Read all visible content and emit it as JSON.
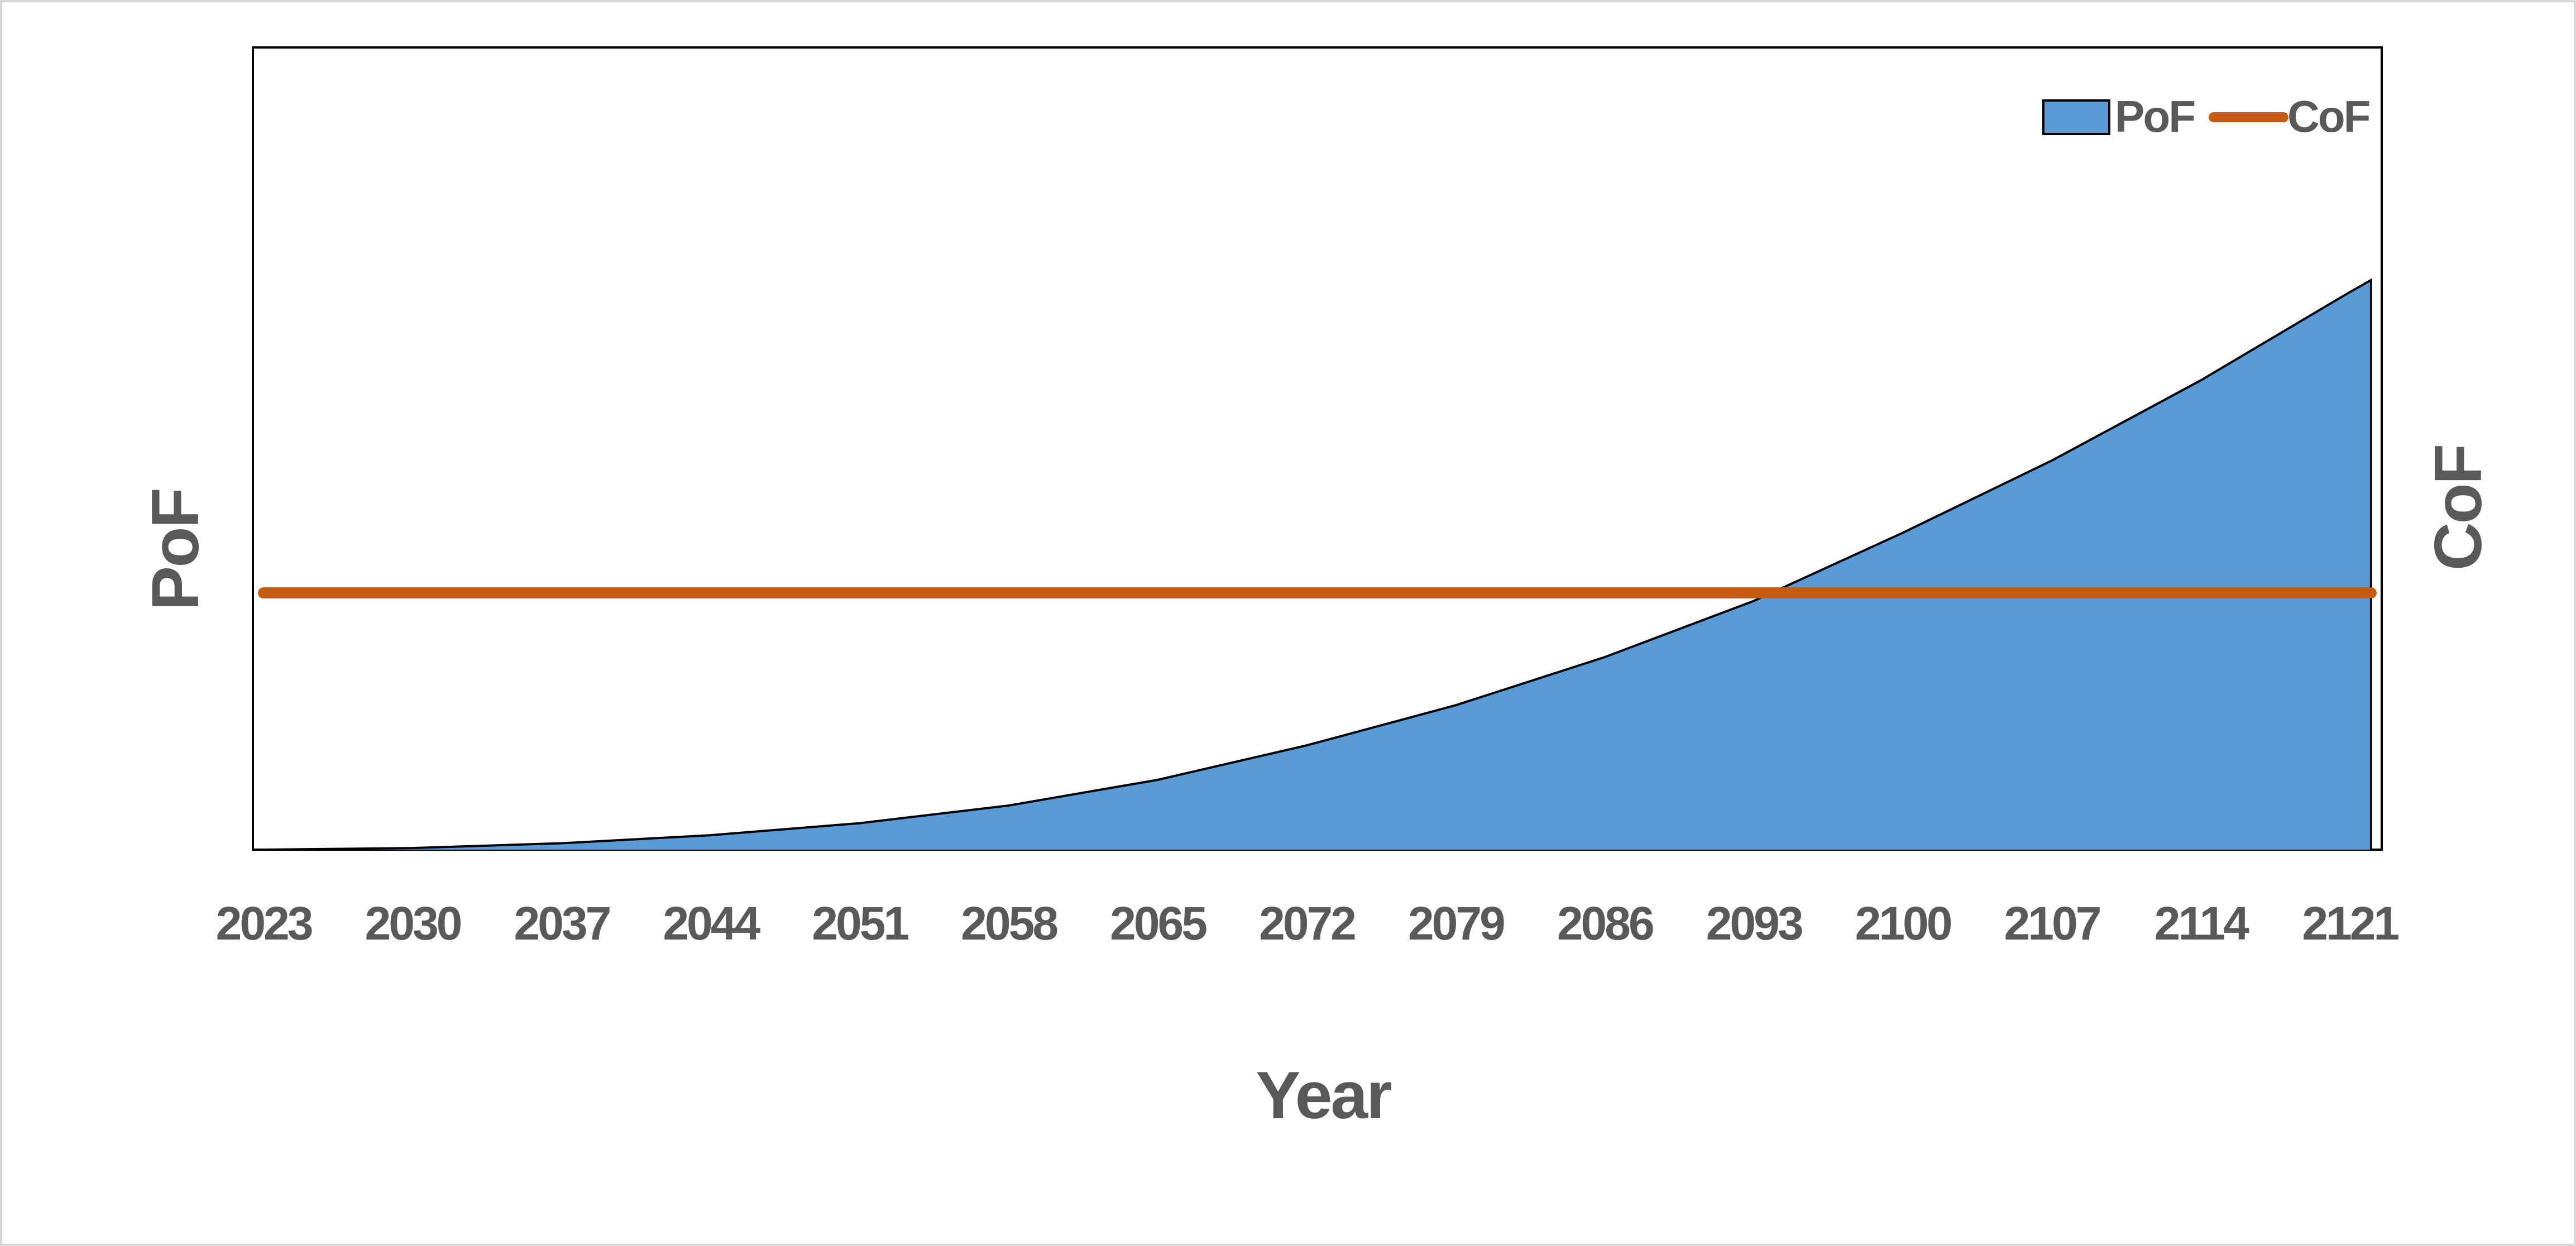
{
  "chart_data": {
    "type": "area",
    "xlabel": "Year",
    "ylabel_left": "PoF",
    "ylabel_right": "CoF",
    "x_tick_labels": [
      "2023",
      "2030",
      "2037",
      "2044",
      "2051",
      "2058",
      "2065",
      "2072",
      "2079",
      "2086",
      "2093",
      "2100",
      "2107",
      "2114",
      "2121"
    ],
    "xlim": [
      2023,
      2122
    ],
    "ylim": [
      0,
      1
    ],
    "grid": false,
    "legend": {
      "placement": "top-right",
      "entries": [
        {
          "name": "PoF",
          "type": "area"
        },
        {
          "name": "CoF",
          "type": "line"
        }
      ]
    },
    "series": [
      {
        "name": "PoF",
        "type": "area",
        "color": "#5B9BD5",
        "x": [
          2023,
          2030,
          2037,
          2044,
          2051,
          2058,
          2065,
          2072,
          2079,
          2086,
          2093,
          2100,
          2107,
          2114,
          2121,
          2122
        ],
        "y": [
          0.0,
          0.002,
          0.008,
          0.018,
          0.033,
          0.055,
          0.087,
          0.13,
          0.18,
          0.24,
          0.31,
          0.395,
          0.485,
          0.585,
          0.695,
          0.71
        ]
      },
      {
        "name": "CoF",
        "type": "line",
        "color": "#C55A11",
        "x": [
          2023,
          2122
        ],
        "y": [
          0.32,
          0.32
        ]
      }
    ]
  }
}
